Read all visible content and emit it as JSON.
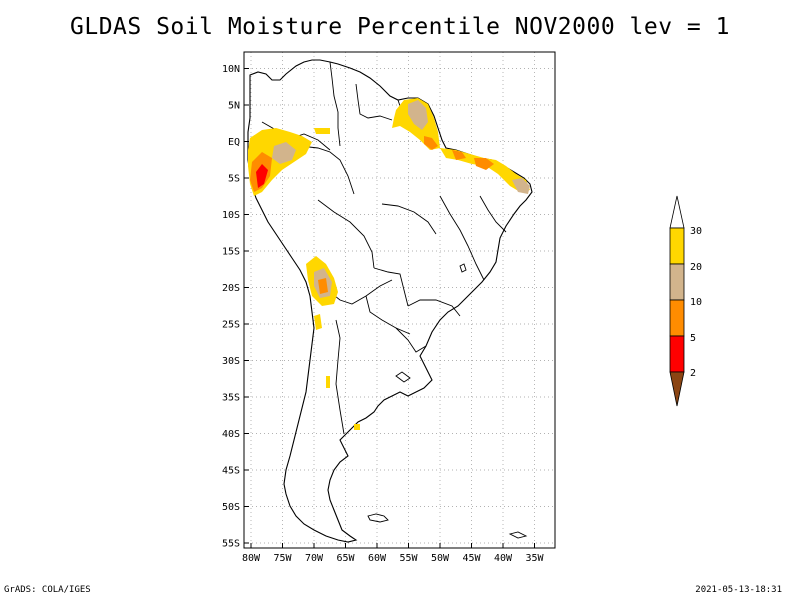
{
  "title": "GLDAS Soil Moisture Percentile NOV2000 lev = 1",
  "lat_labels": [
    "10N",
    "5N",
    "EQ",
    "5S",
    "10S",
    "15S",
    "20S",
    "25S",
    "30S",
    "35S",
    "40S",
    "45S",
    "50S",
    "55S"
  ],
  "lon_labels": [
    "80W",
    "75W",
    "70W",
    "65W",
    "60W",
    "55W",
    "50W",
    "45W",
    "40W",
    "35W"
  ],
  "legend": {
    "labels": [
      "30",
      "20",
      "10",
      "5",
      "2"
    ],
    "colors": {
      "above30": "#ffffff",
      "c20_30": "#ffd700",
      "c10_20": "#d2b48c",
      "c5_10": "#ff8c00",
      "c2_5": "#ff0000",
      "below2": "#8b4513"
    }
  },
  "footer": {
    "left": "GrADS: COLA/IGES",
    "right": "2021-05-13-18:31"
  }
}
